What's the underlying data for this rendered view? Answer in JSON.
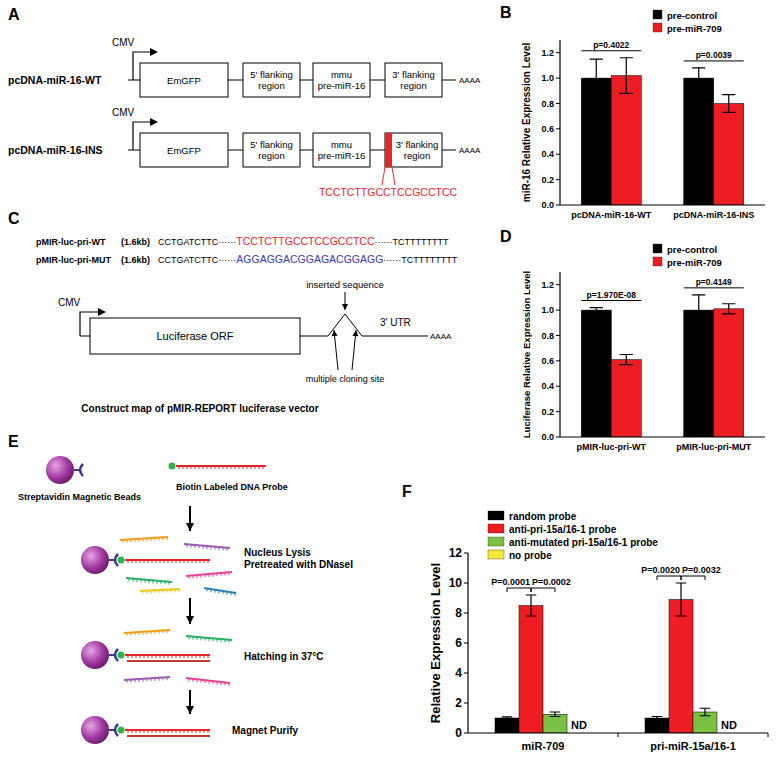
{
  "figure": {
    "A": {
      "panel_label": "A",
      "promoter": "CMV",
      "tail": "AAAA",
      "constructs": [
        {
          "name": "pcDNA-miR-16-WT",
          "elements": [
            [
              "EmGFP"
            ],
            [
              "5' flanking",
              "region"
            ],
            [
              "mmu",
              "pre-miR-16"
            ],
            [
              "3' flanking",
              "region"
            ]
          ]
        },
        {
          "name": "pcDNA-miR-16-INS",
          "elements": [
            [
              "EmGFP"
            ],
            [
              "5' flanking",
              "region"
            ],
            [
              "mmu",
              "pre-miR-16"
            ],
            [
              "3' flanking",
              "region"
            ]
          ],
          "insert": "TCCTCTTGCCTCCGCCTCC",
          "color": "#e8262a"
        }
      ]
    },
    "C": {
      "panel_label": "C",
      "gap": "······",
      "sequences": [
        {
          "name": "pMIR-luc-pri-WT",
          "size": "(1.6kb)",
          "left": "CCTGATCTTC",
          "insert": "TCCTCTTGCCTCCGCCTCC",
          "right": "TCTTTTTTTT",
          "color": "#e8262a"
        },
        {
          "name": "pMIR-luc-pri-MUT",
          "size": "(1.6kb)",
          "left": "CCTGATCTTC",
          "insert": "AGGAGGACGGAGACGGAGG",
          "right": "TCTTTTTTTT",
          "color": "#3b3bb0"
        }
      ],
      "promoter": "CMV",
      "orf": "Luciferase ORF",
      "insert_label": "inserted sequence",
      "site_label": "multiple cloning site",
      "utr": "3' UTR",
      "tail": "AAAA",
      "caption": "Construct map of pMIR-REPORT luciferase vector"
    },
    "E": {
      "panel_label": "E",
      "beads": "Streptavidin Magnetic Beads",
      "probe": "Biotin Labeled DNA Probe",
      "steps": [
        [
          "Nucleus Lysis",
          "Pretreated with DNaseI"
        ],
        [
          "Hatching in 37°C"
        ],
        [
          "Magnet Purify"
        ]
      ]
    }
  },
  "chart_data": [
    {
      "panel_label": "B",
      "type": "bar",
      "y_label": "miR-16 Relative Expression Level",
      "categories": [
        "pcDNA-miR-16-WT",
        "pcDNA-miR-16-INS"
      ],
      "series": [
        {
          "name": "pre-control",
          "color": "#000000",
          "values": [
            1.0,
            1.0
          ],
          "errors": [
            0.15,
            0.08
          ]
        },
        {
          "name": "pre-miR-709",
          "color": "#ee1d23",
          "values": [
            1.02,
            0.8
          ],
          "errors": [
            0.14,
            0.07
          ]
        }
      ],
      "ylim": [
        0,
        1.3
      ],
      "yticks": [
        {
          "value": 0,
          "label": "0.0"
        },
        {
          "value": 0.2,
          "label": "0.2"
        },
        {
          "value": 0.4,
          "label": "0.4"
        },
        {
          "value": 0.6,
          "label": "0.6"
        },
        {
          "value": 0.8,
          "label": "0.8"
        },
        {
          "value": 1.0,
          "label": "1.0"
        },
        {
          "value": 1.2,
          "label": "1.2"
        }
      ],
      "grid": false,
      "legend": "top-right",
      "annotations": [
        {
          "text": "p=0.4022",
          "category": 0
        },
        {
          "text": "p=0.0039",
          "category": 1
        }
      ]
    },
    {
      "panel_label": "D",
      "type": "bar",
      "y_label": "Luciferase Relative Expression Level",
      "categories": [
        "pMIR-luc-pri-WT",
        "pMIR-luc-pri-MUT"
      ],
      "series": [
        {
          "name": "pre-control",
          "color": "#000000",
          "values": [
            1.0,
            1.0
          ],
          "errors": [
            0.02,
            0.12
          ]
        },
        {
          "name": "pre-miR-709",
          "color": "#ee1d23",
          "values": [
            0.61,
            1.01
          ],
          "errors": [
            0.04,
            0.04
          ]
        }
      ],
      "ylim": [
        0,
        1.3
      ],
      "yticks": [
        {
          "value": 0,
          "label": "0.0"
        },
        {
          "value": 0.2,
          "label": "0.2"
        },
        {
          "value": 0.4,
          "label": "0.4"
        },
        {
          "value": 0.6,
          "label": "0.6"
        },
        {
          "value": 0.8,
          "label": "0.8"
        },
        {
          "value": 1.0,
          "label": "1.0"
        },
        {
          "value": 1.2,
          "label": "1.2"
        }
      ],
      "grid": false,
      "legend": "top-right",
      "annotations": [
        {
          "text": "p=1.970E-08",
          "category": 0
        },
        {
          "text": "p=0.4149",
          "category": 1
        }
      ]
    },
    {
      "panel_label": "F",
      "type": "bar",
      "y_label": "Relative Expression Level",
      "categories": [
        "miR-709",
        "pri-miR-15a/16-1"
      ],
      "series": [
        {
          "name": "random probe",
          "color": "#000000",
          "values": [
            1.0,
            1.0
          ],
          "errors": [
            0.08,
            0.1
          ]
        },
        {
          "name": "anti-pri-15a/16-1 probe",
          "color": "#ee1d23",
          "values": [
            8.5,
            8.9
          ],
          "errors": [
            0.7,
            1.1
          ]
        },
        {
          "name": "anti-mutated pri-15a/16-1 probe",
          "color": "#7ac143",
          "values": [
            1.25,
            1.4
          ],
          "errors": [
            0.15,
            0.25
          ]
        },
        {
          "name": "no probe",
          "color": "#f5e63a",
          "values": [
            null,
            null
          ],
          "value_labels": [
            "ND",
            "ND"
          ]
        }
      ],
      "ylim": [
        0,
        12
      ],
      "yticks": [
        0,
        2,
        4,
        6,
        8,
        10,
        12
      ],
      "grid": false,
      "legend": "top-left",
      "annotations": [
        {
          "text": "P=0.0001",
          "category": 0,
          "series": [
            0,
            1
          ]
        },
        {
          "text": "P=0.0002",
          "category": 0,
          "series": [
            1,
            2
          ]
        },
        {
          "text": "P=0.0020",
          "category": 1,
          "series": [
            0,
            1
          ]
        },
        {
          "text": "P=0.0032",
          "category": 1,
          "series": [
            1,
            2
          ]
        }
      ]
    }
  ]
}
